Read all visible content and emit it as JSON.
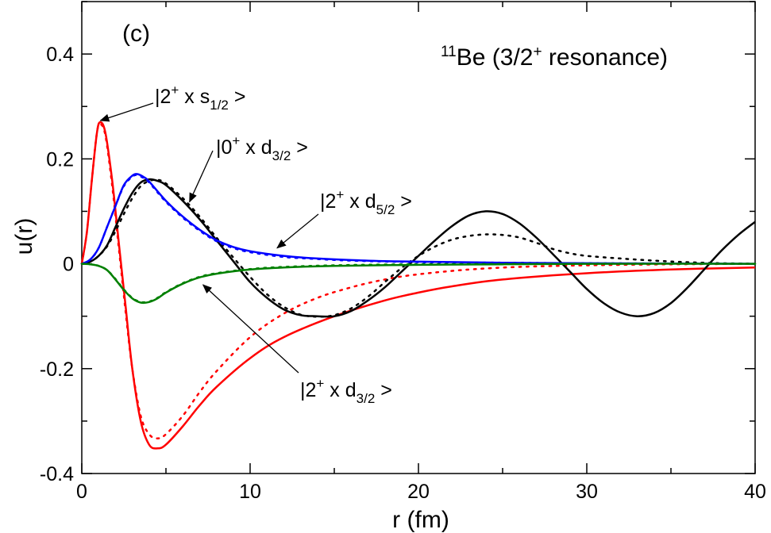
{
  "chart_data": {
    "type": "line",
    "panel_label": "(c)",
    "title": {
      "sup": "11",
      "main": "Be (3/2",
      "main_sup": "+",
      "tail": " resonance)"
    },
    "xlabel": "r (fm)",
    "ylabel": "u(r)",
    "xlim": [
      0,
      40
    ],
    "ylim": [
      -0.4,
      0.5
    ],
    "x_ticks": [
      0,
      10,
      20,
      30,
      40
    ],
    "x_tick_labels": [
      "0",
      "10",
      "20",
      "30",
      "40"
    ],
    "y_ticks": [
      -0.4,
      -0.2,
      0,
      0.2,
      0.4
    ],
    "y_tick_labels": [
      "-0.4",
      "-0.2",
      "0",
      "0.2",
      "0.4"
    ],
    "grid": false,
    "series": [
      {
        "component": "2+ x s1/2",
        "color": "#ff0000",
        "solid": [
          [
            0,
            0
          ],
          [
            0.3,
            0.06
          ],
          [
            0.6,
            0.16
          ],
          [
            0.9,
            0.25
          ],
          [
            1.1,
            0.27
          ],
          [
            1.4,
            0.25
          ],
          [
            1.8,
            0.16
          ],
          [
            2.2,
            0.04
          ],
          [
            2.6,
            -0.08
          ],
          [
            3.0,
            -0.2
          ],
          [
            3.5,
            -0.3
          ],
          [
            4.0,
            -0.345
          ],
          [
            4.5,
            -0.352
          ],
          [
            5.0,
            -0.345
          ],
          [
            6.0,
            -0.31
          ],
          [
            7.0,
            -0.27
          ],
          [
            8.0,
            -0.235
          ],
          [
            10.0,
            -0.18
          ],
          [
            12.0,
            -0.14
          ],
          [
            15.0,
            -0.1
          ],
          [
            18.0,
            -0.07
          ],
          [
            20.0,
            -0.055
          ],
          [
            22.0,
            -0.043
          ],
          [
            25.0,
            -0.03
          ],
          [
            30.0,
            -0.018
          ],
          [
            35.0,
            -0.011
          ],
          [
            40.0,
            -0.007
          ]
        ],
        "dotted": [
          [
            0,
            0
          ],
          [
            0.3,
            0.06
          ],
          [
            0.6,
            0.16
          ],
          [
            0.9,
            0.25
          ],
          [
            1.1,
            0.266
          ],
          [
            1.4,
            0.245
          ],
          [
            1.8,
            0.15
          ],
          [
            2.2,
            0.03
          ],
          [
            2.6,
            -0.09
          ],
          [
            3.0,
            -0.2
          ],
          [
            3.5,
            -0.29
          ],
          [
            4.0,
            -0.325
          ],
          [
            4.5,
            -0.333
          ],
          [
            5.0,
            -0.325
          ],
          [
            6.0,
            -0.29
          ],
          [
            7.0,
            -0.245
          ],
          [
            8.0,
            -0.205
          ],
          [
            10.0,
            -0.14
          ],
          [
            12.0,
            -0.095
          ],
          [
            14.0,
            -0.065
          ],
          [
            16.0,
            -0.045
          ],
          [
            18.0,
            -0.03
          ],
          [
            20.0,
            -0.02
          ],
          [
            23.0,
            -0.011
          ],
          [
            26.0,
            -0.006
          ],
          [
            30.0,
            -0.003
          ],
          [
            35.0,
            -0.001
          ],
          [
            40.0,
            0
          ]
        ]
      },
      {
        "component": "0+ x d3/2",
        "color": "#000000",
        "solid": [
          [
            0,
            0
          ],
          [
            0.5,
            0.004
          ],
          [
            1.0,
            0.015
          ],
          [
            1.5,
            0.035
          ],
          [
            2.0,
            0.07
          ],
          [
            2.5,
            0.105
          ],
          [
            3.0,
            0.135
          ],
          [
            3.5,
            0.155
          ],
          [
            4.0,
            0.161
          ],
          [
            4.5,
            0.158
          ],
          [
            5.0,
            0.15
          ],
          [
            6.0,
            0.12
          ],
          [
            7.0,
            0.085
          ],
          [
            8.0,
            0.045
          ],
          [
            9.0,
            0.005
          ],
          [
            10.0,
            -0.035
          ],
          [
            11.0,
            -0.065
          ],
          [
            12.0,
            -0.087
          ],
          [
            13.0,
            -0.098
          ],
          [
            14.0,
            -0.1
          ],
          [
            15.0,
            -0.1
          ],
          [
            16.0,
            -0.09
          ],
          [
            17.0,
            -0.07
          ],
          [
            18.0,
            -0.045
          ],
          [
            19.0,
            -0.015
          ],
          [
            20.0,
            0.015
          ],
          [
            21.0,
            0.045
          ],
          [
            22.0,
            0.072
          ],
          [
            23.0,
            0.092
          ],
          [
            24.0,
            0.1
          ],
          [
            25.0,
            0.095
          ],
          [
            26.0,
            0.077
          ],
          [
            27.0,
            0.05
          ],
          [
            28.0,
            0.018
          ],
          [
            29.0,
            -0.015
          ],
          [
            30.0,
            -0.048
          ],
          [
            31.0,
            -0.075
          ],
          [
            32.0,
            -0.093
          ],
          [
            33.0,
            -0.1
          ],
          [
            34.0,
            -0.094
          ],
          [
            35.0,
            -0.075
          ],
          [
            36.0,
            -0.045
          ],
          [
            37.0,
            -0.01
          ],
          [
            38.0,
            0.025
          ],
          [
            39.0,
            0.055
          ],
          [
            40.0,
            0.08
          ]
        ],
        "dotted": [
          [
            0,
            0
          ],
          [
            0.5,
            0.004
          ],
          [
            1.0,
            0.015
          ],
          [
            1.5,
            0.033
          ],
          [
            2.0,
            0.062
          ],
          [
            2.5,
            0.095
          ],
          [
            3.0,
            0.125
          ],
          [
            3.5,
            0.148
          ],
          [
            4.0,
            0.158
          ],
          [
            4.5,
            0.16
          ],
          [
            5.0,
            0.153
          ],
          [
            6.0,
            0.125
          ],
          [
            7.0,
            0.09
          ],
          [
            8.0,
            0.05
          ],
          [
            9.0,
            0.012
          ],
          [
            10.0,
            -0.025
          ],
          [
            11.0,
            -0.058
          ],
          [
            12.0,
            -0.082
          ],
          [
            13.0,
            -0.097
          ],
          [
            14.0,
            -0.101
          ],
          [
            15.0,
            -0.098
          ],
          [
            16.0,
            -0.085
          ],
          [
            17.0,
            -0.063
          ],
          [
            18.0,
            -0.035
          ],
          [
            19.0,
            -0.008
          ],
          [
            20.0,
            0.015
          ],
          [
            21.0,
            0.033
          ],
          [
            22.0,
            0.046
          ],
          [
            23.0,
            0.053
          ],
          [
            24.0,
            0.056
          ],
          [
            25.0,
            0.055
          ],
          [
            26.0,
            0.05
          ],
          [
            27.0,
            0.04
          ],
          [
            28.0,
            0.028
          ],
          [
            29.0,
            0.02
          ],
          [
            30.0,
            0.015
          ],
          [
            32.0,
            0.01
          ],
          [
            34.0,
            0.006
          ],
          [
            36.0,
            0.003
          ],
          [
            38.0,
            0.001
          ],
          [
            40.0,
            0
          ]
        ]
      },
      {
        "component": "2+ x d5/2",
        "color": "#0000ff",
        "solid": [
          [
            0,
            0
          ],
          [
            0.5,
            0.008
          ],
          [
            1.0,
            0.03
          ],
          [
            1.5,
            0.07
          ],
          [
            2.0,
            0.11
          ],
          [
            2.5,
            0.15
          ],
          [
            3.0,
            0.168
          ],
          [
            3.3,
            0.171
          ],
          [
            3.7,
            0.165
          ],
          [
            4.0,
            0.157
          ],
          [
            5.0,
            0.12
          ],
          [
            6.0,
            0.09
          ],
          [
            7.0,
            0.065
          ],
          [
            8.0,
            0.045
          ],
          [
            9.0,
            0.032
          ],
          [
            10.0,
            0.024
          ],
          [
            12.0,
            0.015
          ],
          [
            14.0,
            0.01
          ],
          [
            16.0,
            0.007
          ],
          [
            18.0,
            0.005
          ],
          [
            20.0,
            0.004
          ],
          [
            25.0,
            0.002
          ],
          [
            30.0,
            0.001
          ],
          [
            40.0,
            0.0
          ]
        ],
        "dotted": [
          [
            0,
            0
          ],
          [
            0.5,
            0.008
          ],
          [
            1.0,
            0.03
          ],
          [
            1.5,
            0.07
          ],
          [
            2.0,
            0.11
          ],
          [
            2.5,
            0.148
          ],
          [
            3.0,
            0.166
          ],
          [
            3.3,
            0.169
          ],
          [
            3.7,
            0.163
          ],
          [
            4.0,
            0.155
          ],
          [
            5.0,
            0.118
          ],
          [
            6.0,
            0.088
          ],
          [
            7.0,
            0.063
          ],
          [
            8.0,
            0.043
          ],
          [
            9.0,
            0.03
          ],
          [
            10.0,
            0.022
          ],
          [
            12.0,
            0.013
          ],
          [
            14.0,
            0.009
          ],
          [
            16.0,
            0.006
          ],
          [
            20.0,
            0.003
          ],
          [
            25.0,
            0.002
          ],
          [
            30.0,
            0.001
          ],
          [
            40.0,
            0.0
          ]
        ]
      },
      {
        "component": "2+ x d3/2",
        "color": "#008000",
        "solid": [
          [
            0,
            0
          ],
          [
            0.5,
            -0.001
          ],
          [
            1.0,
            -0.004
          ],
          [
            1.5,
            -0.012
          ],
          [
            2.0,
            -0.03
          ],
          [
            2.5,
            -0.05
          ],
          [
            3.0,
            -0.066
          ],
          [
            3.5,
            -0.074
          ],
          [
            4.0,
            -0.073
          ],
          [
            4.5,
            -0.066
          ],
          [
            5.0,
            -0.055
          ],
          [
            6.0,
            -0.038
          ],
          [
            7.0,
            -0.026
          ],
          [
            8.0,
            -0.019
          ],
          [
            10.0,
            -0.011
          ],
          [
            12.0,
            -0.007
          ],
          [
            15.0,
            -0.004
          ],
          [
            20.0,
            -0.002
          ],
          [
            25.0,
            -0.001
          ],
          [
            30.0,
            0
          ],
          [
            40.0,
            0
          ]
        ],
        "dotted": [
          [
            0,
            0
          ],
          [
            0.5,
            -0.001
          ],
          [
            1.0,
            -0.004
          ],
          [
            1.5,
            -0.012
          ],
          [
            2.0,
            -0.029
          ],
          [
            2.5,
            -0.049
          ],
          [
            3.0,
            -0.065
          ],
          [
            3.5,
            -0.073
          ],
          [
            4.0,
            -0.072
          ],
          [
            4.5,
            -0.065
          ],
          [
            5.0,
            -0.054
          ],
          [
            6.0,
            -0.037
          ],
          [
            7.0,
            -0.025
          ],
          [
            8.0,
            -0.018
          ],
          [
            10.0,
            -0.01
          ],
          [
            12.0,
            -0.006
          ],
          [
            15.0,
            -0.003
          ],
          [
            20.0,
            -0.001
          ],
          [
            30.0,
            0
          ],
          [
            40.0,
            0
          ]
        ]
      }
    ],
    "annotations": [
      {
        "main": "|2",
        "sup": "+",
        "mid": " x s",
        "sub": "1/2",
        "tail": " >",
        "arrow_to": [
          1.1,
          0.273
        ]
      },
      {
        "main": "|0",
        "sup": "+",
        "mid": " x d",
        "sub": "3/2",
        "tail": " >",
        "arrow_to": [
          6.4,
          0.118
        ]
      },
      {
        "main": "|2",
        "sup": "+",
        "mid": " x d",
        "sub": "5/2",
        "tail": " >",
        "arrow_to": [
          11.6,
          0.03
        ]
      },
      {
        "main": "|2",
        "sup": "+",
        "mid": " x d",
        "sub": "3/2",
        "tail": " >",
        "arrow_to": [
          7.2,
          -0.04
        ]
      }
    ]
  }
}
